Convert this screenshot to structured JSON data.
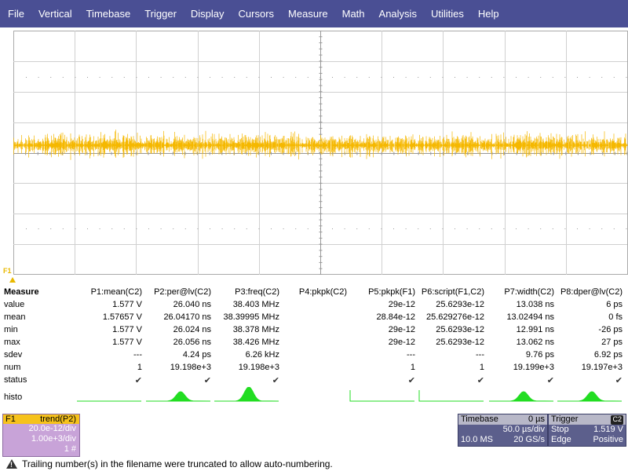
{
  "menu": [
    "File",
    "Vertical",
    "Timebase",
    "Trigger",
    "Display",
    "Cursors",
    "Measure",
    "Math",
    "Analysis",
    "Utilities",
    "Help"
  ],
  "trace": {
    "color": "#f5b800",
    "label": "F1"
  },
  "measure": {
    "title": "Measure",
    "row_labels": [
      "value",
      "mean",
      "min",
      "max",
      "sdev",
      "num",
      "status",
      "histo"
    ],
    "columns": [
      {
        "header": "P1:mean(C2)",
        "value": "1.577 V",
        "mean": "1.57657 V",
        "min": "1.577 V",
        "max": "1.577 V",
        "sdev": "---",
        "num": "1",
        "status": "✔",
        "histo": "none"
      },
      {
        "header": "P2:per@lv(C2)",
        "value": "26.040 ns",
        "mean": "26.04170 ns",
        "min": "26.024 ns",
        "max": "26.056 ns",
        "sdev": "4.24 ps",
        "num": "19.198e+3",
        "status": "✔",
        "histo": "peak"
      },
      {
        "header": "P3:freq(C2)",
        "value": "38.403 MHz",
        "mean": "38.39995 MHz",
        "min": "38.378 MHz",
        "max": "38.426 MHz",
        "sdev": "6.26 kHz",
        "num": "19.198e+3",
        "status": "✔",
        "histo": "bigpeak"
      },
      {
        "header": "P4:pkpk(C2)",
        "value": "",
        "mean": "",
        "min": "",
        "max": "",
        "sdev": "",
        "num": "",
        "status": "",
        "histo": "empty"
      },
      {
        "header": "P5:pkpk(F1)",
        "value": "29e-12",
        "mean": "28.84e-12",
        "min": "29e-12",
        "max": "29e-12",
        "sdev": "---",
        "num": "1",
        "status": "✔",
        "histo": "spike"
      },
      {
        "header": "P6:script(F1,C2)",
        "value": "25.6293e-12",
        "mean": "25.629276e-12",
        "min": "25.6293e-12",
        "max": "25.6293e-12",
        "sdev": "---",
        "num": "1",
        "status": "✔",
        "histo": "spike"
      },
      {
        "header": "P7:width(C2)",
        "value": "13.038 ns",
        "mean": "13.02494 ns",
        "min": "12.991 ns",
        "max": "13.062 ns",
        "sdev": "9.76 ps",
        "num": "19.199e+3",
        "status": "✔",
        "histo": "peak"
      },
      {
        "header": "P8:dper@lv(C2)",
        "value": "6 ps",
        "mean": "0 fs",
        "min": "-26 ps",
        "max": "27 ps",
        "sdev": "6.92 ps",
        "num": "19.197e+3",
        "status": "✔",
        "histo": "peak"
      }
    ]
  },
  "f1_box": {
    "name": "F1",
    "func": "trend(P2)",
    "vdiv": "20.0e-12/div",
    "hdiv": "1.00e+3/div",
    "count": "1 #"
  },
  "timebase": {
    "label": "Timebase",
    "delay": "0 µs",
    "tdiv": "50.0 µs/div",
    "samples": "10.0 MS",
    "rate": "20 GS/s"
  },
  "trigger": {
    "label": "Trigger",
    "channel": "C2",
    "mode": "Stop",
    "level": "1.519 V",
    "type": "Edge",
    "slope": "Positive"
  },
  "status_message": "Trailing number(s) in the filename were truncated to allow auto-numbering."
}
